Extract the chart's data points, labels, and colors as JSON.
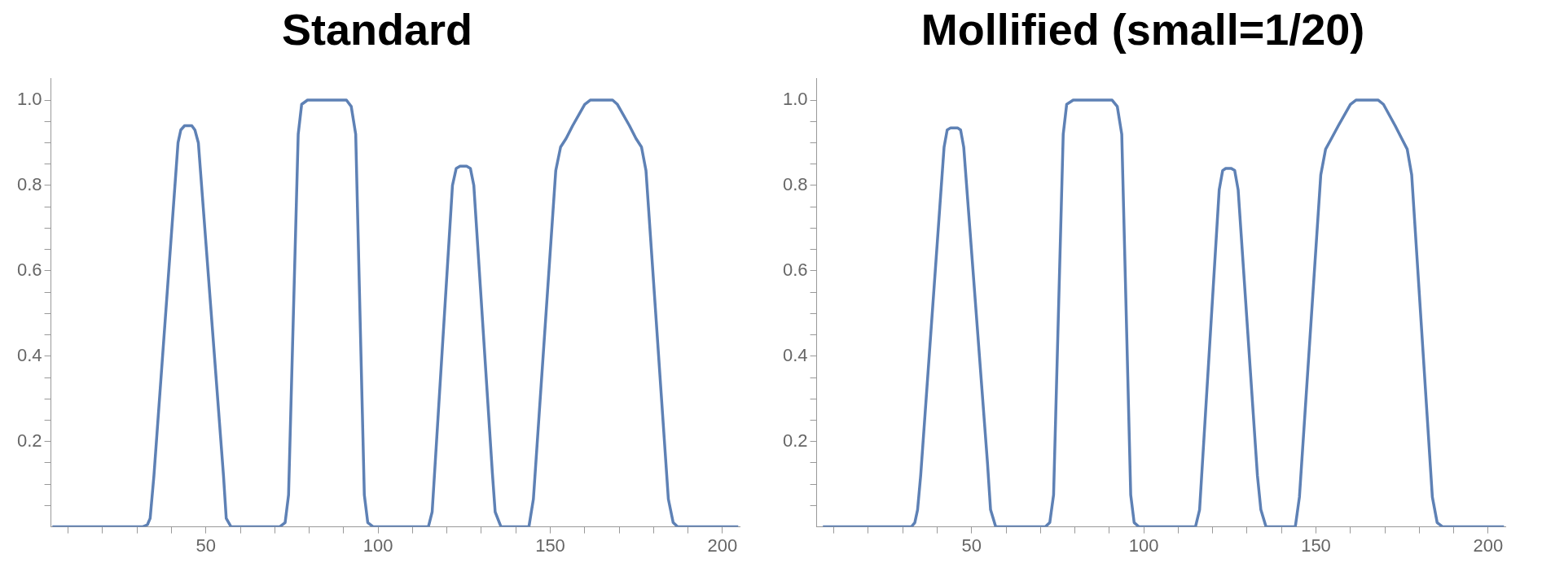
{
  "chart_data": [
    {
      "type": "line",
      "title": "Standard",
      "color": "#5e81b5",
      "xlim": [
        5,
        205
      ],
      "ylim": [
        0,
        1.05
      ],
      "x": [
        5.4,
        31.6,
        33,
        33.8,
        34.9,
        41.9,
        42.7,
        43.8,
        45.9,
        46.8,
        47.8,
        55.1,
        55.9,
        57.3,
        71.4,
        73,
        74,
        76.8,
        77.8,
        79.5,
        90.8,
        92.2,
        93.5,
        96,
        97,
        98.6,
        114.6,
        115.7,
        121.6,
        122.7,
        123.8,
        125.7,
        126.8,
        127.8,
        133.2,
        134,
        135.7,
        143.8,
        145.1,
        151.6,
        153,
        154.6,
        156.5,
        160,
        161.6,
        168.1,
        169.5,
        173,
        174.9,
        176.5,
        177.8,
        184.3,
        185.7,
        187,
        204.6
      ],
      "values": [
        0,
        0,
        0.005,
        0.02,
        0.12,
        0.9,
        0.93,
        0.94,
        0.94,
        0.93,
        0.9,
        0.12,
        0.02,
        0,
        0,
        0.01,
        0.075,
        0.92,
        0.99,
        1,
        1,
        0.985,
        0.92,
        0.075,
        0.01,
        0,
        0,
        0.035,
        0.8,
        0.84,
        0.845,
        0.845,
        0.84,
        0.8,
        0.125,
        0.035,
        0,
        0,
        0.065,
        0.835,
        0.89,
        0.91,
        0.94,
        0.99,
        1,
        1,
        0.99,
        0.94,
        0.91,
        0.89,
        0.835,
        0.065,
        0.01,
        0,
        0
      ],
      "xticks": [
        {
          "value": 10,
          "label": null
        },
        {
          "value": 20,
          "label": null
        },
        {
          "value": 30,
          "label": null
        },
        {
          "value": 40,
          "label": null
        },
        50,
        {
          "value": 60,
          "label": null
        },
        {
          "value": 70,
          "label": null
        },
        {
          "value": 80,
          "label": null
        },
        {
          "value": 90,
          "label": null
        },
        100,
        {
          "value": 110,
          "label": null
        },
        {
          "value": 120,
          "label": null
        },
        {
          "value": 130,
          "label": null
        },
        {
          "value": 140,
          "label": null
        },
        150,
        {
          "value": 160,
          "label": null
        },
        {
          "value": 170,
          "label": null
        },
        {
          "value": 180,
          "label": null
        },
        {
          "value": 190,
          "label": null
        },
        200
      ],
      "yticks": [
        {
          "value": 0.05,
          "label": null
        },
        {
          "value": 0.1,
          "label": null
        },
        {
          "value": 0.15,
          "label": null
        },
        0.2,
        {
          "value": 0.25,
          "label": null
        },
        {
          "value": 0.3,
          "label": null
        },
        {
          "value": 0.35,
          "label": null
        },
        0.4,
        {
          "value": 0.45,
          "label": null
        },
        {
          "value": 0.5,
          "label": null
        },
        {
          "value": 0.55,
          "label": null
        },
        0.6,
        {
          "value": 0.65,
          "label": null
        },
        {
          "value": 0.7,
          "label": null
        },
        {
          "value": 0.75,
          "label": null
        },
        0.8,
        {
          "value": 0.85,
          "label": null
        },
        {
          "value": 0.9,
          "label": null
        },
        {
          "value": 0.95,
          "label": null
        },
        {
          "value": 1,
          "label": "1.0"
        }
      ]
    },
    {
      "type": "line",
      "title": "Mollified (small=1/20)",
      "color": "#5e81b5",
      "xlim": [
        5,
        205
      ],
      "ylim": [
        0,
        1.05
      ],
      "x": [
        6.8,
        32.5,
        33.5,
        34.3,
        35.2,
        42,
        42.9,
        43.9,
        45.9,
        46.8,
        47.7,
        54.6,
        55.5,
        57,
        71.4,
        72.7,
        73.8,
        76.6,
        77.6,
        79.5,
        90.8,
        92.3,
        93.6,
        96.2,
        97.2,
        98.6,
        115,
        116.2,
        121.9,
        122.9,
        123.8,
        125.4,
        126.4,
        127.4,
        133,
        134,
        135.5,
        144,
        145.2,
        151.4,
        152.8,
        154.5,
        156.5,
        160,
        161.6,
        168.1,
        169.6,
        173,
        174.9,
        176.5,
        177.8,
        183.8,
        185.2,
        186.8,
        204.6
      ],
      "values": [
        0,
        0,
        0.01,
        0.04,
        0.12,
        0.89,
        0.93,
        0.935,
        0.935,
        0.93,
        0.89,
        0.15,
        0.04,
        0,
        0,
        0.01,
        0.075,
        0.92,
        0.99,
        1,
        1,
        0.985,
        0.92,
        0.075,
        0.01,
        0,
        0,
        0.04,
        0.79,
        0.835,
        0.84,
        0.84,
        0.835,
        0.79,
        0.12,
        0.04,
        0,
        0,
        0.07,
        0.825,
        0.885,
        0.91,
        0.94,
        0.99,
        1,
        1,
        0.99,
        0.94,
        0.91,
        0.885,
        0.825,
        0.07,
        0.01,
        0,
        0
      ],
      "xticks": [
        {
          "value": 10,
          "label": null
        },
        {
          "value": 20,
          "label": null
        },
        {
          "value": 30,
          "label": null
        },
        {
          "value": 40,
          "label": null
        },
        50,
        {
          "value": 60,
          "label": null
        },
        {
          "value": 70,
          "label": null
        },
        {
          "value": 80,
          "label": null
        },
        {
          "value": 90,
          "label": null
        },
        100,
        {
          "value": 110,
          "label": null
        },
        {
          "value": 120,
          "label": null
        },
        {
          "value": 130,
          "label": null
        },
        {
          "value": 140,
          "label": null
        },
        150,
        {
          "value": 160,
          "label": null
        },
        {
          "value": 170,
          "label": null
        },
        {
          "value": 180,
          "label": null
        },
        {
          "value": 190,
          "label": null
        },
        200
      ],
      "yticks": [
        {
          "value": 0.05,
          "label": null
        },
        {
          "value": 0.1,
          "label": null
        },
        {
          "value": 0.15,
          "label": null
        },
        0.2,
        {
          "value": 0.25,
          "label": null
        },
        {
          "value": 0.3,
          "label": null
        },
        {
          "value": 0.35,
          "label": null
        },
        0.4,
        {
          "value": 0.45,
          "label": null
        },
        {
          "value": 0.5,
          "label": null
        },
        {
          "value": 0.55,
          "label": null
        },
        0.6,
        {
          "value": 0.65,
          "label": null
        },
        {
          "value": 0.7,
          "label": null
        },
        {
          "value": 0.75,
          "label": null
        },
        0.8,
        {
          "value": 0.85,
          "label": null
        },
        {
          "value": 0.9,
          "label": null
        },
        {
          "value": 0.95,
          "label": null
        },
        {
          "value": 1,
          "label": "1.0"
        }
      ]
    }
  ]
}
